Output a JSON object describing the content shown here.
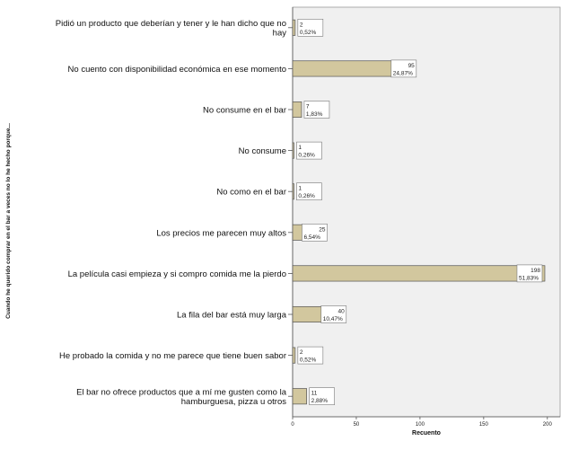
{
  "chart_data": {
    "type": "bar",
    "orientation": "horizontal",
    "ylabel": "Cuando he querido comprar en el bar a veces no lo he hecho porque...",
    "xlabel": "Recuento",
    "xlim": [
      0,
      210
    ],
    "xticks": [
      0,
      50,
      100,
      150,
      200
    ],
    "categories": [
      [
        "Pidió un producto que deberían y tener y le han dicho que no",
        "hay"
      ],
      [
        "No cuento con disponibilidad económica en ese momento"
      ],
      [
        "No consume en el bar"
      ],
      [
        "No consume"
      ],
      [
        "No como en el bar"
      ],
      [
        "Los precios me parecen muy altos"
      ],
      [
        "La película casi empieza y si compro comida me la pierdo"
      ],
      [
        "La fila del bar está muy larga"
      ],
      [
        "He probado la comida y no me parece que tiene buen sabor"
      ],
      [
        "El bar no ofrece productos que a mí me gusten como la",
        "hamburguesa, pizza u otros"
      ]
    ],
    "values": [
      2,
      95,
      7,
      1,
      1,
      25,
      198,
      40,
      2,
      11
    ],
    "percentages": [
      "0,52%",
      "24,87%",
      "1,83%",
      "0,26%",
      "0,26%",
      "6,54%",
      "51,83%",
      "10,47%",
      "0,52%",
      "2,88%"
    ],
    "bar_color": "#d2c79e",
    "plot_background": "#f0f0f0"
  }
}
